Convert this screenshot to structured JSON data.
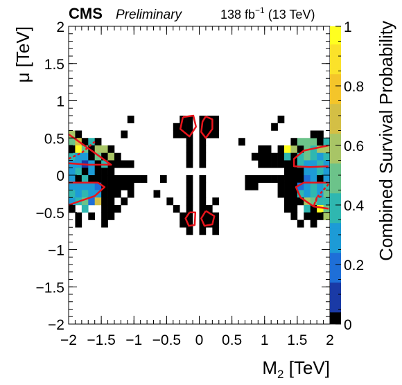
{
  "chart_data": {
    "type": "heatmap",
    "header": {
      "experiment": "CMS",
      "status": "Preliminary",
      "lumi_value": "138 fb",
      "lumi_exp": "−1",
      "energy": " (13 TeV)"
    },
    "xlabel_main": "M",
    "xlabel_sub": "2",
    "xlabel_unit": " [TeV]",
    "ylabel": "μ [TeV]",
    "zlabel": "Combined Survival Probability",
    "xlim": [
      -2,
      2
    ],
    "ylim": [
      -2,
      2
    ],
    "zlim": [
      0,
      1
    ],
    "x_ticks": [
      "−2",
      "−1.5",
      "−1",
      "−0.5",
      "0",
      "0.5",
      "1",
      "1.5",
      "2"
    ],
    "y_ticks": [
      "−2",
      "−1.5",
      "−1",
      "−0.5",
      "0",
      "0.5",
      "1",
      "1.5",
      "2"
    ],
    "z_ticks": [
      "0",
      "0.2",
      "0.4",
      "0.6",
      "0.8",
      "1"
    ],
    "x_tick_values": [
      -2,
      -1.5,
      -1,
      -0.5,
      0,
      0.5,
      1,
      1.5,
      2
    ],
    "y_tick_values": [
      -2,
      -1.5,
      -1,
      -0.5,
      0,
      0.5,
      1,
      1.5,
      2
    ],
    "z_tick_values": [
      0,
      0.2,
      0.4,
      0.6,
      0.8,
      1
    ],
    "bin_width": 0.1,
    "bin_height": 0.1,
    "colormap": [
      "#000000",
      "#1a3aa6",
      "#1e6fd8",
      "#1d9bd6",
      "#2fb7b0",
      "#6cc38a",
      "#a8c566",
      "#d4bf45",
      "#f4c52a",
      "#fbe22a",
      "#ffff20"
    ],
    "cells": [
      [
        -1.95,
        0.55,
        0.55
      ],
      [
        -1.85,
        0.55,
        0
      ],
      [
        -1.95,
        0.45,
        0.45
      ],
      [
        -1.85,
        0.45,
        0.65
      ],
      [
        -1.75,
        0.45,
        0
      ],
      [
        -1.65,
        0.45,
        0.4
      ],
      [
        -1.55,
        0.45,
        0
      ],
      [
        -1.95,
        0.35,
        0
      ],
      [
        -1.85,
        0.35,
        0.95
      ],
      [
        -1.75,
        0.35,
        0.5
      ],
      [
        -1.65,
        0.35,
        0
      ],
      [
        -1.55,
        0.35,
        0.55
      ],
      [
        -1.45,
        0.35,
        0.6
      ],
      [
        -1.35,
        0.35,
        0
      ],
      [
        -1.95,
        0.25,
        0.4
      ],
      [
        -1.85,
        0.25,
        0.3
      ],
      [
        -1.75,
        0.25,
        0.25
      ],
      [
        -1.65,
        0.25,
        0
      ],
      [
        -1.55,
        0.25,
        0.45
      ],
      [
        -1.45,
        0.25,
        0
      ],
      [
        -1.35,
        0.25,
        0.6
      ],
      [
        -1.25,
        0.25,
        0
      ],
      [
        -1.95,
        0.15,
        0.3
      ],
      [
        -1.85,
        0.15,
        0.25
      ],
      [
        -1.75,
        0.15,
        0.12
      ],
      [
        -1.65,
        0.15,
        0.3
      ],
      [
        -1.55,
        0.15,
        0
      ],
      [
        -1.45,
        0.15,
        0.35
      ],
      [
        -1.35,
        0.15,
        0
      ],
      [
        -1.25,
        0.15,
        0
      ],
      [
        -1.15,
        0.15,
        0
      ],
      [
        -1.05,
        0.15,
        0
      ],
      [
        -1.95,
        0.05,
        0.3
      ],
      [
        -1.85,
        0.05,
        0.35
      ],
      [
        -1.75,
        0.05,
        0
      ],
      [
        -1.65,
        0.05,
        0.3
      ],
      [
        -1.55,
        0.05,
        0
      ],
      [
        -1.45,
        0.05,
        0
      ],
      [
        -1.35,
        0.05,
        0
      ],
      [
        -1.95,
        -0.05,
        0.3
      ],
      [
        -1.85,
        -0.05,
        0
      ],
      [
        -1.75,
        -0.05,
        0.35
      ],
      [
        -1.65,
        -0.05,
        0
      ],
      [
        -1.55,
        -0.05,
        0
      ],
      [
        -1.45,
        -0.05,
        0
      ],
      [
        -1.35,
        -0.05,
        0
      ],
      [
        -1.25,
        -0.05,
        0
      ],
      [
        -1.15,
        -0.05,
        0
      ],
      [
        -1.05,
        -0.05,
        0
      ],
      [
        -0.95,
        -0.05,
        0
      ],
      [
        -0.85,
        -0.05,
        0
      ],
      [
        -0.55,
        -0.05,
        0
      ],
      [
        -1.95,
        -0.15,
        0.3
      ],
      [
        -1.85,
        -0.15,
        0.3
      ],
      [
        -1.75,
        -0.15,
        0.3
      ],
      [
        -1.65,
        -0.15,
        0.3
      ],
      [
        -1.55,
        -0.15,
        0.15
      ],
      [
        -1.45,
        -0.15,
        0
      ],
      [
        -1.35,
        -0.15,
        0
      ],
      [
        -1.25,
        -0.15,
        0
      ],
      [
        -1.15,
        -0.15,
        0
      ],
      [
        -1.05,
        -0.15,
        0
      ],
      [
        -1.95,
        -0.25,
        0.35
      ],
      [
        -1.85,
        -0.25,
        0.3
      ],
      [
        -1.75,
        -0.25,
        0.35
      ],
      [
        -1.65,
        -0.25,
        0.3
      ],
      [
        -1.55,
        -0.25,
        0.25
      ],
      [
        -1.45,
        -0.25,
        0
      ],
      [
        -1.35,
        -0.25,
        0
      ],
      [
        -1.25,
        -0.25,
        0
      ],
      [
        -1.05,
        -0.25,
        0
      ],
      [
        -1.95,
        -0.35,
        0.3
      ],
      [
        -1.85,
        -0.35,
        0.35
      ],
      [
        -1.75,
        -0.35,
        0.45
      ],
      [
        -1.65,
        -0.35,
        0.2
      ],
      [
        -1.55,
        -0.35,
        0.7
      ],
      [
        -1.45,
        -0.35,
        0
      ],
      [
        -1.35,
        -0.35,
        0
      ],
      [
        -1.15,
        -0.35,
        0
      ],
      [
        -1.95,
        -0.45,
        0
      ],
      [
        -1.75,
        -0.45,
        0.4
      ],
      [
        -1.45,
        -0.45,
        0
      ],
      [
        -1.35,
        -0.45,
        0
      ],
      [
        -1.25,
        -0.45,
        0
      ],
      [
        -1.85,
        -0.55,
        0
      ],
      [
        -1.65,
        -0.55,
        0
      ],
      [
        -1.45,
        -0.55,
        0
      ],
      [
        -1.35,
        -0.55,
        0
      ],
      [
        -1.85,
        -0.65,
        0
      ],
      [
        -1.45,
        -0.65,
        0
      ],
      [
        -1.05,
        0.75,
        0
      ],
      [
        -1.15,
        0.55,
        0
      ],
      [
        -0.65,
        -0.25,
        0
      ],
      [
        -0.45,
        -0.35,
        0
      ],
      [
        -0.35,
        -0.45,
        0
      ],
      [
        -0.25,
        0.75,
        0
      ],
      [
        -0.15,
        0.75,
        0
      ],
      [
        0.05,
        0.75,
        0
      ],
      [
        0.15,
        0.75,
        0
      ],
      [
        0.25,
        0.75,
        0
      ],
      [
        -0.35,
        0.65,
        0
      ],
      [
        -0.25,
        0.65,
        0
      ],
      [
        -0.15,
        0.65,
        0
      ],
      [
        0.05,
        0.65,
        0
      ],
      [
        0.15,
        0.65,
        0
      ],
      [
        0.25,
        0.65,
        0
      ],
      [
        -0.35,
        0.55,
        0
      ],
      [
        -0.25,
        0.55,
        0
      ],
      [
        -0.15,
        0.55,
        0
      ],
      [
        0.05,
        0.55,
        0
      ],
      [
        0.15,
        0.55,
        0
      ],
      [
        0.25,
        0.55,
        0
      ],
      [
        -0.15,
        0.45,
        0
      ],
      [
        0.05,
        0.45,
        0
      ],
      [
        -0.15,
        0.35,
        0
      ],
      [
        0.05,
        0.35,
        0
      ],
      [
        -0.15,
        0.25,
        0
      ],
      [
        0.05,
        0.25,
        0
      ],
      [
        -0.15,
        0.15,
        0
      ],
      [
        0.05,
        0.15,
        0
      ],
      [
        -0.15,
        -0.05,
        0
      ],
      [
        0.05,
        -0.05,
        0
      ],
      [
        -0.15,
        -0.15,
        0
      ],
      [
        0.05,
        -0.15,
        0
      ],
      [
        -0.15,
        -0.25,
        0
      ],
      [
        0.05,
        -0.25,
        0
      ],
      [
        -0.15,
        -0.35,
        0
      ],
      [
        0.05,
        -0.35,
        0
      ],
      [
        0.25,
        -0.35,
        0
      ],
      [
        -0.15,
        -0.45,
        0
      ],
      [
        0.05,
        -0.45,
        0
      ],
      [
        0.15,
        -0.45,
        0
      ],
      [
        -0.25,
        -0.55,
        0
      ],
      [
        -0.15,
        -0.55,
        0
      ],
      [
        0.05,
        -0.55,
        0
      ],
      [
        0.15,
        -0.55,
        0
      ],
      [
        0.25,
        -0.55,
        0
      ],
      [
        -0.25,
        -0.65,
        0
      ],
      [
        -0.15,
        -0.65,
        0
      ],
      [
        0.05,
        -0.65,
        0
      ],
      [
        0.15,
        -0.65,
        0
      ],
      [
        0.25,
        -0.65,
        0
      ],
      [
        -0.15,
        -0.75,
        0
      ],
      [
        0.05,
        -0.75,
        0
      ],
      [
        0.25,
        -0.75,
        0
      ],
      [
        0.65,
        0.45,
        0
      ],
      [
        0.75,
        -0.15,
        0
      ],
      [
        0.85,
        -0.15,
        0
      ],
      [
        0.95,
        -0.05,
        0
      ],
      [
        0.75,
        -0.05,
        0
      ],
      [
        0.85,
        -0.05,
        0
      ],
      [
        1.05,
        -0.05,
        0
      ],
      [
        1.15,
        -0.05,
        0
      ],
      [
        0.95,
        0.35,
        0
      ],
      [
        1.05,
        0.35,
        0
      ],
      [
        0.85,
        0.25,
        0
      ],
      [
        0.95,
        0.25,
        0
      ],
      [
        1.05,
        0.25,
        0
      ],
      [
        0.95,
        0.15,
        0
      ],
      [
        1.05,
        0.15,
        0
      ],
      [
        1.15,
        0.15,
        0
      ],
      [
        1.25,
        0.35,
        0
      ],
      [
        1.35,
        0.35,
        0.95
      ],
      [
        1.45,
        0.35,
        0.55
      ],
      [
        1.55,
        0.35,
        0
      ],
      [
        1.65,
        0.35,
        0.45
      ],
      [
        1.75,
        0.35,
        0.4
      ],
      [
        1.85,
        0.35,
        0.55
      ],
      [
        1.95,
        0.35,
        0.6
      ],
      [
        1.15,
        0.25,
        0
      ],
      [
        1.25,
        0.25,
        0
      ],
      [
        1.35,
        0.25,
        0.4
      ],
      [
        1.45,
        0.25,
        0
      ],
      [
        1.55,
        0.25,
        0.4
      ],
      [
        1.65,
        0.25,
        0.45
      ],
      [
        1.75,
        0.25,
        0.35
      ],
      [
        1.85,
        0.25,
        0.3
      ],
      [
        1.95,
        0.25,
        0.35
      ],
      [
        1.25,
        0.15,
        0
      ],
      [
        1.35,
        0.15,
        0
      ],
      [
        1.45,
        0.15,
        0
      ],
      [
        1.55,
        0.15,
        0.35
      ],
      [
        1.65,
        0.15,
        0.3
      ],
      [
        1.75,
        0.15,
        0.3
      ],
      [
        1.85,
        0.15,
        0.35
      ],
      [
        1.95,
        0.15,
        0.3
      ],
      [
        1.35,
        0.05,
        0
      ],
      [
        1.45,
        0.05,
        0
      ],
      [
        1.55,
        0.05,
        0
      ],
      [
        1.65,
        0.05,
        0.3
      ],
      [
        1.75,
        0.05,
        0.3
      ],
      [
        1.85,
        0.05,
        0.35
      ],
      [
        1.95,
        0.05,
        0.3
      ],
      [
        1.45,
        0.45,
        0
      ],
      [
        1.55,
        0.45,
        0.5
      ],
      [
        1.65,
        0.45,
        0.45
      ],
      [
        1.75,
        0.45,
        0.5
      ],
      [
        1.85,
        0.45,
        0
      ],
      [
        1.95,
        0.45,
        0.35
      ],
      [
        1.75,
        0.55,
        0
      ],
      [
        1.85,
        0.55,
        0
      ],
      [
        1.15,
        0.65,
        0
      ],
      [
        1.25,
        0.75,
        0
      ],
      [
        1.25,
        -0.05,
        0
      ],
      [
        1.35,
        -0.05,
        0
      ],
      [
        1.45,
        -0.05,
        0
      ],
      [
        1.55,
        -0.05,
        0
      ],
      [
        1.65,
        -0.05,
        0.15
      ],
      [
        1.75,
        -0.05,
        0.3
      ],
      [
        1.85,
        -0.05,
        0
      ],
      [
        1.95,
        -0.05,
        0.3
      ],
      [
        1.25,
        -0.15,
        0
      ],
      [
        1.35,
        -0.15,
        0
      ],
      [
        1.45,
        -0.15,
        0
      ],
      [
        1.55,
        -0.15,
        0.2
      ],
      [
        1.65,
        -0.15,
        0.3
      ],
      [
        1.75,
        -0.15,
        0.35
      ],
      [
        1.85,
        -0.15,
        0.3
      ],
      [
        1.95,
        -0.15,
        0.35
      ],
      [
        1.25,
        -0.25,
        0
      ],
      [
        1.35,
        -0.25,
        0
      ],
      [
        1.45,
        -0.25,
        0
      ],
      [
        1.55,
        -0.25,
        0.35
      ],
      [
        1.65,
        -0.25,
        0.3
      ],
      [
        1.75,
        -0.25,
        0.35
      ],
      [
        1.85,
        -0.25,
        0.3
      ],
      [
        1.95,
        -0.25,
        0.45
      ],
      [
        1.35,
        -0.35,
        0
      ],
      [
        1.45,
        -0.35,
        0
      ],
      [
        1.55,
        -0.35,
        0
      ],
      [
        1.65,
        -0.35,
        0.55
      ],
      [
        1.75,
        -0.35,
        0.45
      ],
      [
        1.85,
        -0.35,
        0.35
      ],
      [
        1.95,
        -0.35,
        0.4
      ],
      [
        1.35,
        -0.45,
        0
      ],
      [
        1.45,
        -0.45,
        0
      ],
      [
        1.65,
        -0.45,
        0.35
      ],
      [
        1.75,
        -0.45,
        0
      ],
      [
        1.85,
        -0.45,
        0.95
      ],
      [
        1.95,
        -0.45,
        0.5
      ],
      [
        1.45,
        -0.55,
        0
      ],
      [
        1.65,
        -0.55,
        0
      ],
      [
        1.75,
        -0.55,
        0
      ],
      [
        1.85,
        -0.55,
        0
      ],
      [
        1.95,
        -0.55,
        0.55
      ],
      [
        1.55,
        -0.65,
        0
      ],
      [
        1.75,
        -0.65,
        0
      ]
    ],
    "contours_solid": [
      [
        [
          -2.0,
          0.55
        ],
        [
          -1.6,
          0.3
        ],
        [
          -1.35,
          0.14
        ],
        [
          -1.7,
          0.14
        ],
        [
          -2.0,
          0.16
        ]
      ],
      [
        [
          -2.0,
          -0.1
        ],
        [
          -1.55,
          -0.1
        ],
        [
          -1.45,
          -0.16
        ],
        [
          -1.6,
          -0.28
        ],
        [
          -2.0,
          -0.4
        ]
      ],
      [
        [
          1.98,
          0.4
        ],
        [
          1.6,
          0.33
        ],
        [
          1.45,
          0.22
        ],
        [
          1.45,
          0.12
        ],
        [
          1.7,
          0.11
        ],
        [
          1.98,
          0.12
        ]
      ],
      [
        [
          1.98,
          -0.1
        ],
        [
          1.6,
          -0.1
        ],
        [
          1.48,
          -0.16
        ],
        [
          1.55,
          -0.3
        ],
        [
          1.75,
          -0.42
        ],
        [
          1.98,
          -0.45
        ]
      ],
      [
        [
          -0.25,
          0.78
        ],
        [
          -0.09,
          0.8
        ],
        [
          -0.05,
          0.65
        ],
        [
          -0.15,
          0.52
        ],
        [
          -0.29,
          0.62
        ],
        [
          -0.25,
          0.78
        ]
      ],
      [
        [
          0.1,
          0.79
        ],
        [
          0.2,
          0.75
        ],
        [
          0.2,
          0.62
        ],
        [
          0.1,
          0.5
        ],
        [
          0.03,
          0.58
        ],
        [
          0.05,
          0.72
        ],
        [
          0.1,
          0.79
        ]
      ],
      [
        [
          -0.15,
          -0.5
        ],
        [
          -0.06,
          -0.5
        ],
        [
          -0.07,
          -0.67
        ],
        [
          -0.16,
          -0.68
        ],
        [
          -0.21,
          -0.58
        ],
        [
          -0.15,
          -0.5
        ]
      ],
      [
        [
          0.1,
          -0.48
        ],
        [
          0.23,
          -0.55
        ],
        [
          0.2,
          -0.66
        ],
        [
          0.08,
          -0.68
        ],
        [
          0.03,
          -0.58
        ],
        [
          0.1,
          -0.48
        ]
      ]
    ],
    "contours_dashed": [
      [
        [
          -2.0,
          0.22
        ],
        [
          -1.8,
          0.3
        ],
        [
          -1.6,
          0.45
        ]
      ],
      [
        [
          1.98,
          -0.12
        ],
        [
          1.82,
          -0.28
        ],
        [
          1.75,
          -0.42
        ],
        [
          1.8,
          -0.3
        ],
        [
          1.9,
          -0.28
        ]
      ]
    ],
    "contour_color": "#e8141b"
  }
}
